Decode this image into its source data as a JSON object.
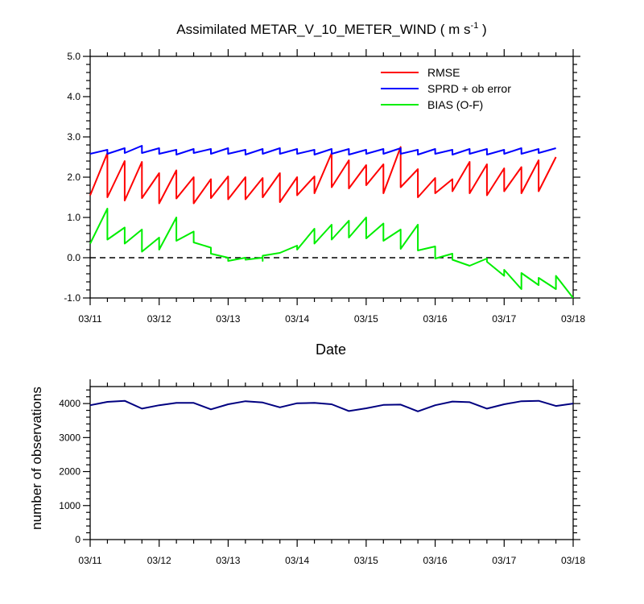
{
  "chart_data": [
    {
      "type": "line",
      "title": "Assimilated METAR_V_10_METER_WIND ( m s",
      "title_superscript": "-1",
      "title_suffix": " )",
      "xlabel": "Date",
      "ylabel": "",
      "x_tick_labels": [
        "03/11",
        "03/12",
        "03/13",
        "03/14",
        "03/15",
        "03/16",
        "03/17",
        "03/18"
      ],
      "xlim": [
        0,
        7
      ],
      "ylim": [
        -1.0,
        5.0
      ],
      "y_ticks": [
        -1.0,
        0.0,
        1.0,
        2.0,
        3.0,
        4.0,
        5.0
      ],
      "y_tick_labels": [
        "-1.0",
        "0.0",
        "1.0",
        "2.0",
        "3.0",
        "4.0",
        "5.0"
      ],
      "reference_line": {
        "y": 0.0,
        "style": "dashed",
        "color": "#000000"
      },
      "legend_position": "top-right",
      "grid": false,
      "series": [
        {
          "name": "RMSE",
          "color": "#ff0000",
          "points": [
            [
              0.0,
              1.55
            ],
            [
              0.25,
              2.6
            ],
            [
              0.25,
              1.5
            ],
            [
              0.5,
              2.4
            ],
            [
              0.5,
              1.42
            ],
            [
              0.75,
              2.38
            ],
            [
              0.75,
              1.48
            ],
            [
              1.0,
              2.1
            ],
            [
              1.0,
              1.35
            ],
            [
              1.25,
              2.17
            ],
            [
              1.25,
              1.47
            ],
            [
              1.5,
              2.0
            ],
            [
              1.5,
              1.35
            ],
            [
              1.75,
              1.95
            ],
            [
              1.75,
              1.48
            ],
            [
              2.0,
              2.02
            ],
            [
              2.0,
              1.45
            ],
            [
              2.25,
              2.0
            ],
            [
              2.25,
              1.45
            ],
            [
              2.5,
              1.98
            ],
            [
              2.5,
              1.5
            ],
            [
              2.75,
              2.1
            ],
            [
              2.75,
              1.38
            ],
            [
              3.0,
              2.0
            ],
            [
              3.0,
              1.55
            ],
            [
              3.25,
              2.02
            ],
            [
              3.25,
              1.6
            ],
            [
              3.5,
              2.6
            ],
            [
              3.5,
              1.75
            ],
            [
              3.75,
              2.42
            ],
            [
              3.75,
              1.72
            ],
            [
              4.0,
              2.3
            ],
            [
              4.0,
              1.8
            ],
            [
              4.25,
              2.32
            ],
            [
              4.25,
              1.6
            ],
            [
              4.5,
              2.75
            ],
            [
              4.5,
              1.75
            ],
            [
              4.75,
              2.2
            ],
            [
              4.75,
              1.5
            ],
            [
              5.0,
              1.98
            ],
            [
              5.0,
              1.6
            ],
            [
              5.25,
              1.95
            ],
            [
              5.25,
              1.65
            ],
            [
              5.5,
              2.38
            ],
            [
              5.5,
              1.6
            ],
            [
              5.75,
              2.32
            ],
            [
              5.75,
              1.55
            ],
            [
              6.0,
              2.22
            ],
            [
              6.0,
              1.65
            ],
            [
              6.25,
              2.25
            ],
            [
              6.25,
              1.6
            ],
            [
              6.5,
              2.42
            ],
            [
              6.5,
              1.65
            ],
            [
              6.75,
              2.5
            ]
          ]
        },
        {
          "name": "SPRD + ob error",
          "color": "#0000ff",
          "points": [
            [
              0.0,
              2.58
            ],
            [
              0.25,
              2.68
            ],
            [
              0.25,
              2.58
            ],
            [
              0.5,
              2.72
            ],
            [
              0.5,
              2.6
            ],
            [
              0.75,
              2.78
            ],
            [
              0.75,
              2.6
            ],
            [
              1.0,
              2.72
            ],
            [
              1.0,
              2.58
            ],
            [
              1.25,
              2.68
            ],
            [
              1.25,
              2.56
            ],
            [
              1.5,
              2.7
            ],
            [
              1.5,
              2.6
            ],
            [
              1.75,
              2.7
            ],
            [
              1.75,
              2.58
            ],
            [
              2.0,
              2.72
            ],
            [
              2.0,
              2.58
            ],
            [
              2.25,
              2.68
            ],
            [
              2.25,
              2.56
            ],
            [
              2.5,
              2.7
            ],
            [
              2.5,
              2.58
            ],
            [
              2.75,
              2.72
            ],
            [
              2.75,
              2.58
            ],
            [
              3.0,
              2.7
            ],
            [
              3.0,
              2.58
            ],
            [
              3.25,
              2.68
            ],
            [
              3.25,
              2.56
            ],
            [
              3.5,
              2.7
            ],
            [
              3.5,
              2.58
            ],
            [
              3.75,
              2.7
            ],
            [
              3.75,
              2.56
            ],
            [
              4.0,
              2.68
            ],
            [
              4.0,
              2.58
            ],
            [
              4.25,
              2.7
            ],
            [
              4.25,
              2.58
            ],
            [
              4.5,
              2.72
            ],
            [
              4.5,
              2.58
            ],
            [
              4.75,
              2.68
            ],
            [
              4.75,
              2.56
            ],
            [
              5.0,
              2.7
            ],
            [
              5.0,
              2.58
            ],
            [
              5.25,
              2.68
            ],
            [
              5.25,
              2.56
            ],
            [
              5.5,
              2.7
            ],
            [
              5.5,
              2.58
            ],
            [
              5.75,
              2.7
            ],
            [
              5.75,
              2.56
            ],
            [
              6.0,
              2.68
            ],
            [
              6.0,
              2.58
            ],
            [
              6.25,
              2.72
            ],
            [
              6.25,
              2.58
            ],
            [
              6.5,
              2.7
            ],
            [
              6.5,
              2.6
            ],
            [
              6.75,
              2.72
            ]
          ]
        },
        {
          "name": "BIAS (O-F)",
          "color": "#00ee00",
          "points": [
            [
              0.0,
              0.35
            ],
            [
              0.25,
              1.22
            ],
            [
              0.25,
              0.45
            ],
            [
              0.5,
              0.75
            ],
            [
              0.5,
              0.35
            ],
            [
              0.75,
              0.7
            ],
            [
              0.75,
              0.15
            ],
            [
              1.0,
              0.5
            ],
            [
              1.0,
              0.2
            ],
            [
              1.25,
              1.0
            ],
            [
              1.25,
              0.42
            ],
            [
              1.5,
              0.65
            ],
            [
              1.5,
              0.38
            ],
            [
              1.75,
              0.25
            ],
            [
              1.75,
              0.1
            ],
            [
              2.0,
              0.0
            ],
            [
              2.0,
              -0.08
            ],
            [
              2.25,
              0.0
            ],
            [
              2.25,
              -0.05
            ],
            [
              2.5,
              0.0
            ],
            [
              2.5,
              -0.08
            ],
            [
              2.5,
              0.05
            ],
            [
              2.75,
              0.12
            ],
            [
              3.0,
              0.3
            ],
            [
              3.0,
              0.2
            ],
            [
              3.25,
              0.72
            ],
            [
              3.25,
              0.35
            ],
            [
              3.5,
              0.82
            ],
            [
              3.5,
              0.45
            ],
            [
              3.75,
              0.92
            ],
            [
              3.75,
              0.5
            ],
            [
              4.0,
              1.0
            ],
            [
              4.0,
              0.48
            ],
            [
              4.25,
              0.85
            ],
            [
              4.25,
              0.42
            ],
            [
              4.5,
              0.7
            ],
            [
              4.5,
              0.22
            ],
            [
              4.75,
              0.82
            ],
            [
              4.75,
              0.18
            ],
            [
              5.0,
              0.28
            ],
            [
              5.0,
              -0.02
            ],
            [
              5.25,
              0.1
            ],
            [
              5.25,
              -0.05
            ],
            [
              5.5,
              -0.2
            ],
            [
              5.75,
              -0.02
            ],
            [
              5.75,
              -0.1
            ],
            [
              6.0,
              -0.45
            ],
            [
              6.0,
              -0.3
            ],
            [
              6.25,
              -0.78
            ],
            [
              6.25,
              -0.38
            ],
            [
              6.5,
              -0.68
            ],
            [
              6.5,
              -0.5
            ],
            [
              6.75,
              -0.78
            ],
            [
              6.75,
              -0.45
            ],
            [
              7.0,
              -1.0
            ]
          ]
        }
      ]
    },
    {
      "type": "line",
      "title": "",
      "xlabel": "",
      "ylabel": "number of observations",
      "x_tick_labels": [
        "03/11",
        "03/12",
        "03/13",
        "03/14",
        "03/15",
        "03/16",
        "03/17",
        "03/18"
      ],
      "xlim": [
        0,
        7
      ],
      "ylim": [
        0,
        4500
      ],
      "y_ticks": [
        0,
        1000,
        2000,
        3000,
        4000
      ],
      "y_tick_labels": [
        "0",
        "1000",
        "2000",
        "3000",
        "4000"
      ],
      "grid": false,
      "series": [
        {
          "color": "#000080",
          "points": [
            [
              0.0,
              3950
            ],
            [
              0.25,
              4050
            ],
            [
              0.5,
              4080
            ],
            [
              0.75,
              3850
            ],
            [
              1.0,
              3950
            ],
            [
              1.25,
              4020
            ],
            [
              1.5,
              4020
            ],
            [
              1.75,
              3830
            ],
            [
              2.0,
              3980
            ],
            [
              2.25,
              4070
            ],
            [
              2.5,
              4030
            ],
            [
              2.75,
              3890
            ],
            [
              3.0,
              4010
            ],
            [
              3.25,
              4020
            ],
            [
              3.5,
              3980
            ],
            [
              3.75,
              3780
            ],
            [
              4.0,
              3860
            ],
            [
              4.25,
              3960
            ],
            [
              4.5,
              3970
            ],
            [
              4.75,
              3770
            ],
            [
              5.0,
              3950
            ],
            [
              5.25,
              4060
            ],
            [
              5.5,
              4040
            ],
            [
              5.75,
              3850
            ],
            [
              6.0,
              3980
            ],
            [
              6.25,
              4070
            ],
            [
              6.5,
              4080
            ],
            [
              6.75,
              3930
            ],
            [
              7.0,
              4000
            ]
          ]
        }
      ]
    }
  ]
}
